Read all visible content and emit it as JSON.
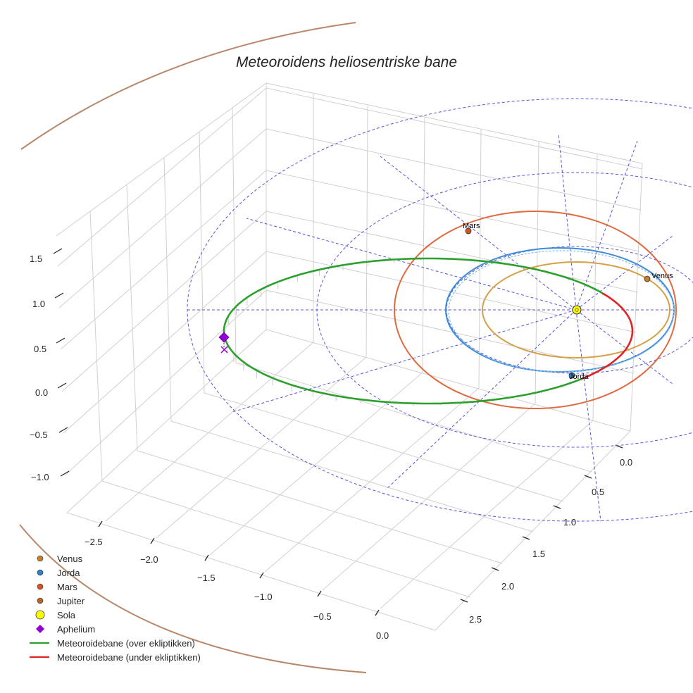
{
  "chart_data": {
    "type": "line",
    "projection": "3d",
    "title": "Meteoroidens heliosentriske bane",
    "axes": {
      "x": {
        "ticks": [
          "−2.5",
          "−2.0",
          "−1.5",
          "−1.0",
          "−0.5",
          "0.0"
        ]
      },
      "y": {
        "ticks": [
          "0.0",
          "0.5",
          "1.0",
          "1.5",
          "2.0",
          "2.5"
        ]
      },
      "z": {
        "ticks": [
          "1.5",
          "1.0",
          "0.5",
          "0.0",
          "−0.5",
          "−1.0"
        ]
      },
      "grid": true
    },
    "bodies": [
      {
        "name": "Venus",
        "color": "#c57f2a",
        "orbit_color": "#d4a048",
        "label": "Venus"
      },
      {
        "name": "Jorda",
        "color": "#2f7fc1",
        "orbit_color": "#3d8ad8",
        "label": "Jorda"
      },
      {
        "name": "Mars",
        "color": "#d3541e",
        "orbit_color": "#e06a40",
        "label": "Mars"
      },
      {
        "name": "Jupiter",
        "color": "#b5652a",
        "orbit_color": "#b8876a",
        "label": ""
      },
      {
        "name": "Sola",
        "color": "#ffff00"
      }
    ],
    "special_points": [
      {
        "name": "Aphelium",
        "color": "#9400d3",
        "marker": "diamond"
      }
    ],
    "series": [
      {
        "name": "Meteoroidebane (over ekliptikken)",
        "color": "#2ca02c"
      },
      {
        "name": "Meteoroidebane (under ekliptikken)",
        "color": "#e02424"
      }
    ],
    "reference_grid_color": "#5555dd"
  },
  "legend": {
    "items": [
      {
        "label": "Venus",
        "color": "#c57f2a",
        "marker": "circle"
      },
      {
        "label": "Jorda",
        "color": "#2f7fc1",
        "marker": "circle"
      },
      {
        "label": "Mars",
        "color": "#d3541e",
        "marker": "circle"
      },
      {
        "label": "Jupiter",
        "color": "#b5652a",
        "marker": "circle"
      },
      {
        "label": "Sola",
        "color": "#ffff00",
        "marker": "big-circle"
      },
      {
        "label": "Aphelium",
        "color": "#9400d3",
        "marker": "diamond"
      },
      {
        "label": "Meteoroidebane (over ekliptikken)",
        "color": "#2ca02c",
        "marker": "line"
      },
      {
        "label": "Meteoroidebane (under ekliptikken)",
        "color": "#e02424",
        "marker": "line"
      }
    ]
  }
}
